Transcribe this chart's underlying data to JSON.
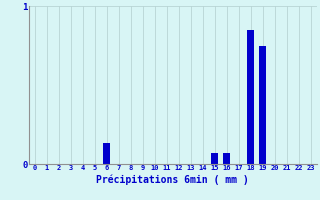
{
  "title": "Précipitations 6min ( mm )",
  "categories": [
    0,
    1,
    2,
    3,
    4,
    5,
    6,
    7,
    8,
    9,
    10,
    11,
    12,
    13,
    14,
    15,
    16,
    17,
    18,
    19,
    20,
    21,
    22,
    23
  ],
  "values": [
    0,
    0,
    0,
    0,
    0,
    0,
    0.13,
    0,
    0,
    0,
    0,
    0,
    0,
    0,
    0,
    0.07,
    0.07,
    0,
    0.85,
    0.75,
    0,
    0,
    0,
    0
  ],
  "bar_color": "#0000cc",
  "bg_color": "#d8f5f5",
  "grid_color": "#b8d4d4",
  "axis_color": "#909090",
  "text_color": "#0000cc",
  "ylim": [
    0,
    1.0
  ],
  "ytick_labels": [
    "0",
    "1"
  ],
  "ytick_vals": [
    0,
    1
  ],
  "xlim": [
    -0.5,
    23.5
  ],
  "bar_width": 0.6
}
